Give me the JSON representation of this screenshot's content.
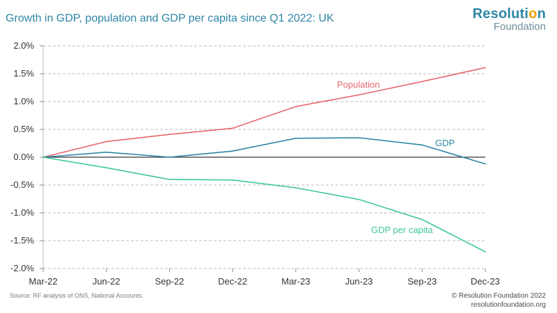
{
  "header": {
    "title": "Growth in GDP, population and GDP per capita since Q1 2022: UK"
  },
  "logo": {
    "line1_main": "Resoluti",
    "line1_accent": "o",
    "line1_end": "n",
    "line2": "Foundation"
  },
  "footer": {
    "source": "Source: RF analysis of ONS, National Accounts.",
    "copyright": "© Resolution Foundation 2022",
    "website": "resolutionfoundation.org"
  },
  "colors": {
    "population": "#e8676a",
    "gdp": "#2f86a6",
    "gdp_per_capita": "#3ec79a",
    "zero_line": "#333333",
    "grid": "#bbbbbb"
  },
  "chart_data": {
    "type": "line",
    "title": "Growth in GDP, population and GDP per capita since Q1 2022: UK",
    "xlabel": "",
    "ylabel": "",
    "categories": [
      "Mar-22",
      "Jun-22",
      "Sep-22",
      "Dec-22",
      "Mar-23",
      "Jun-23",
      "Sep-23",
      "Dec-23"
    ],
    "ylim": [
      -2.0,
      2.0
    ],
    "yticks": [
      2.0,
      1.5,
      1.0,
      0.5,
      0.0,
      -0.5,
      -1.0,
      -1.5,
      -2.0
    ],
    "ytick_labels": [
      "2.0%",
      "1.5%",
      "1.0%",
      "0.5%",
      "0.0%",
      "-0.5%",
      "-1.0%",
      "-1.5%",
      "-2.0%"
    ],
    "grid": "horizontal dashed",
    "series": [
      {
        "name": "Population",
        "color_key": "population",
        "values": [
          0.0,
          0.28,
          0.41,
          0.52,
          0.91,
          1.12,
          1.36,
          1.61
        ]
      },
      {
        "name": "GDP",
        "color_key": "gdp",
        "values": [
          0.0,
          0.09,
          0.0,
          0.11,
          0.34,
          0.35,
          0.22,
          -0.12
        ]
      },
      {
        "name": "GDP per capita",
        "color_key": "gdp_per_capita",
        "values": [
          0.0,
          -0.19,
          -0.4,
          -0.41,
          -0.55,
          -0.76,
          -1.12,
          -1.7
        ]
      }
    ]
  }
}
